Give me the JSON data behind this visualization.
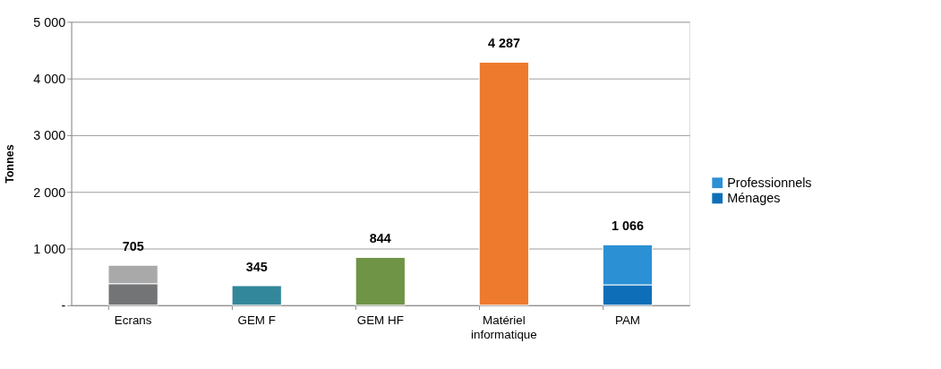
{
  "chart_data": {
    "type": "bar",
    "stacked": true,
    "ylabel": "Tonnes",
    "categories": [
      "Ecrans",
      "GEM F",
      "GEM HF",
      "Matériel informatique",
      "PAM"
    ],
    "series": [
      {
        "name": "Ménages",
        "color": "#0e6fb8",
        "colors": [
          "#727476",
          "#33879a",
          "#6f9445",
          "#ee7a2e",
          "#0e6fb8"
        ],
        "values": [
          380,
          345,
          844,
          null,
          360
        ]
      },
      {
        "name": "Professionnels",
        "color": "#2b90d4",
        "colors": [
          "#a9a9a9",
          "#33879a",
          "#6f9445",
          "#ee7a2e",
          "#2b90d4"
        ],
        "values": [
          325,
          null,
          null,
          4287,
          706
        ]
      }
    ],
    "totals": [
      "705",
      "345",
      "844",
      "4 287",
      "1 066"
    ],
    "ylim": [
      0,
      5000
    ],
    "yticks": [
      {
        "value": 0,
        "label": "-"
      },
      {
        "value": 1000,
        "label": "1 000"
      },
      {
        "value": 2000,
        "label": "2 000"
      },
      {
        "value": 3000,
        "label": "3 000"
      },
      {
        "value": 4000,
        "label": "4 000"
      },
      {
        "value": 5000,
        "label": "5 000"
      }
    ],
    "grid": "y",
    "legend": "right"
  }
}
